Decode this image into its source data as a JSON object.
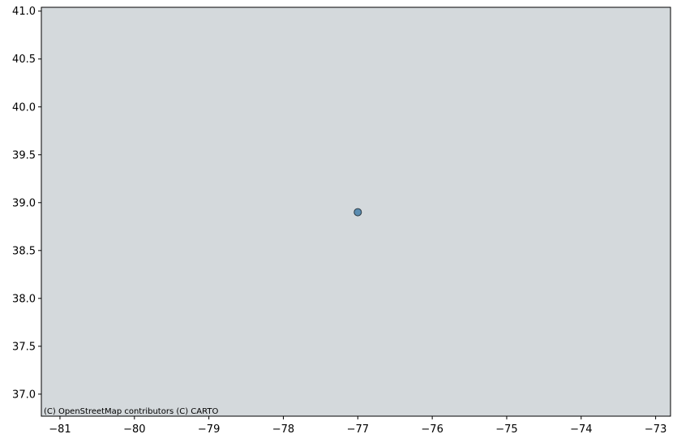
{
  "chart_data": {
    "type": "scatter",
    "title": "",
    "xlabel": "",
    "ylabel": "",
    "xlim": [
      -81.25,
      -72.8
    ],
    "ylim": [
      36.77,
      41.04
    ],
    "x_ticks": [
      -81,
      -80,
      -79,
      -78,
      -77,
      -76,
      -75,
      -74,
      -73
    ],
    "x_tick_labels": [
      "−81",
      "−80",
      "−79",
      "−78",
      "−77",
      "−76",
      "−75",
      "−74",
      "−73"
    ],
    "y_ticks": [
      37.0,
      37.5,
      38.0,
      38.5,
      39.0,
      39.5,
      40.0,
      40.5,
      41.0
    ],
    "y_tick_labels": [
      "37.0",
      "37.5",
      "38.0",
      "38.5",
      "39.0",
      "39.5",
      "40.0",
      "40.5",
      "41.0"
    ],
    "points": [
      {
        "x": -77.0,
        "y": 38.9
      }
    ],
    "grid": false,
    "legend": "none"
  },
  "map": {
    "attribution": "(C) OpenStreetMap contributors (C) CARTO",
    "basemap_color": "#d4d9dc"
  },
  "colors": {
    "point_fill": "#5b8db1",
    "point_edge": "#2b3a44",
    "axis": "#000000"
  }
}
